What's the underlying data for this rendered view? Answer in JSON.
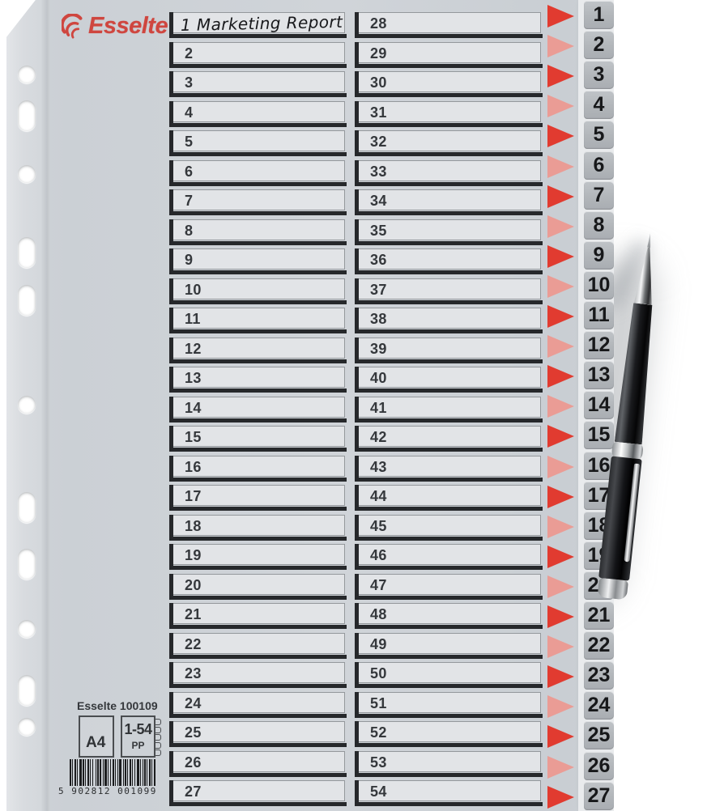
{
  "brand": {
    "name": "Esselte"
  },
  "sheet": {
    "handwritten_note": "1 Marketing Report",
    "rows": [
      {
        "left": "1 Marketing Report",
        "left_handwritten": true,
        "right": "28"
      },
      {
        "left": "2",
        "right": "29"
      },
      {
        "left": "3",
        "right": "30"
      },
      {
        "left": "4",
        "right": "31"
      },
      {
        "left": "5",
        "right": "32"
      },
      {
        "left": "6",
        "right": "33"
      },
      {
        "left": "7",
        "right": "34"
      },
      {
        "left": "8",
        "right": "35"
      },
      {
        "left": "9",
        "right": "36"
      },
      {
        "left": "10",
        "right": "37"
      },
      {
        "left": "11",
        "right": "38"
      },
      {
        "left": "12",
        "right": "39"
      },
      {
        "left": "13",
        "right": "40"
      },
      {
        "left": "14",
        "right": "41"
      },
      {
        "left": "15",
        "right": "42"
      },
      {
        "left": "16",
        "right": "43"
      },
      {
        "left": "17",
        "right": "44"
      },
      {
        "left": "18",
        "right": "45"
      },
      {
        "left": "19",
        "right": "46"
      },
      {
        "left": "20",
        "right": "47"
      },
      {
        "left": "21",
        "right": "48"
      },
      {
        "left": "22",
        "right": "49"
      },
      {
        "left": "23",
        "right": "50"
      },
      {
        "left": "24",
        "right": "51"
      },
      {
        "left": "25",
        "right": "52"
      },
      {
        "left": "26",
        "right": "53"
      },
      {
        "left": "27",
        "right": "54"
      }
    ],
    "tabs": [
      "1",
      "2",
      "3",
      "4",
      "5",
      "6",
      "7",
      "8",
      "9",
      "10",
      "11",
      "12",
      "13",
      "14",
      "15",
      "16",
      "17",
      "18",
      "19",
      "20",
      "21",
      "22",
      "23",
      "24",
      "25",
      "26",
      "27"
    ]
  },
  "footer": {
    "product_code": "Esselte 100109",
    "format": "A4",
    "range": "1-54",
    "material": "PP",
    "barcode_digits": "5 902812 001099"
  },
  "colors": {
    "logo_red": "#cf463f",
    "arrow_strong": "#e13b30",
    "arrow_soft": "#ea9c95",
    "sheet_grey": "#cdd1d6",
    "field_bg": "#e2e4e7",
    "tab_grey": "#b2b6ba"
  }
}
